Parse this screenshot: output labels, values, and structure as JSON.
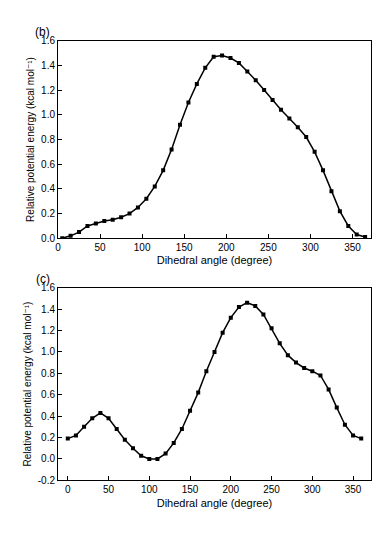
{
  "chart_data": [
    {
      "type": "line",
      "title": "(b)",
      "x_label": "Dihedral angle (degree)",
      "y_label": "Relative potential energy (kcal mol⁻¹)",
      "x": [
        5,
        15,
        25,
        35,
        45,
        55,
        65,
        75,
        85,
        95,
        105,
        115,
        125,
        135,
        145,
        155,
        165,
        175,
        185,
        195,
        205,
        215,
        225,
        235,
        245,
        255,
        265,
        275,
        285,
        295,
        305,
        315,
        325,
        335,
        345,
        355,
        365
      ],
      "values": [
        0.0,
        0.02,
        0.05,
        0.1,
        0.12,
        0.14,
        0.15,
        0.17,
        0.2,
        0.25,
        0.32,
        0.42,
        0.55,
        0.72,
        0.92,
        1.1,
        1.25,
        1.38,
        1.47,
        1.48,
        1.46,
        1.42,
        1.35,
        1.28,
        1.2,
        1.12,
        1.04,
        0.97,
        0.9,
        0.82,
        0.7,
        0.55,
        0.38,
        0.22,
        0.1,
        0.03,
        0.01
      ],
      "color": "#000000",
      "marker": "square",
      "line_style": "solid",
      "xlim": [
        0,
        372
      ],
      "xticks": [
        0,
        50,
        100,
        150,
        200,
        250,
        300,
        350
      ],
      "ylim": [
        0,
        1.6
      ],
      "yticks": [
        {
          "value": 0,
          "label": "0.0"
        },
        {
          "value": 0.2,
          "label": "0.2"
        },
        {
          "value": 0.4,
          "label": "0.4"
        },
        {
          "value": 0.6,
          "label": "0.6"
        },
        {
          "value": 0.8,
          "label": "0.8"
        },
        {
          "value": 1.0,
          "label": "1.0"
        },
        {
          "value": 1.2,
          "label": "1.2"
        },
        {
          "value": 1.4,
          "label": "1.4"
        },
        {
          "value": 1.6,
          "label": "1.6"
        }
      ],
      "grid": false
    },
    {
      "type": "line",
      "title": "(c)",
      "x_label": "Dihedral angle (degree)",
      "y_label": "Relative potential energy (kcal mol⁻¹)",
      "x": [
        0,
        10,
        20,
        30,
        40,
        50,
        60,
        70,
        80,
        90,
        100,
        110,
        120,
        130,
        140,
        150,
        160,
        170,
        180,
        190,
        200,
        210,
        220,
        230,
        240,
        250,
        260,
        270,
        280,
        290,
        300,
        310,
        320,
        330,
        340,
        350,
        360
      ],
      "values": [
        0.19,
        0.22,
        0.3,
        0.38,
        0.43,
        0.38,
        0.28,
        0.18,
        0.1,
        0.03,
        0.0,
        0.0,
        0.05,
        0.15,
        0.28,
        0.45,
        0.62,
        0.82,
        1.0,
        1.18,
        1.32,
        1.42,
        1.46,
        1.43,
        1.35,
        1.22,
        1.08,
        0.97,
        0.9,
        0.85,
        0.82,
        0.78,
        0.65,
        0.48,
        0.32,
        0.22,
        0.19
      ],
      "color": "#000000",
      "marker": "square",
      "line_style": "solid",
      "xlim": [
        -12,
        372
      ],
      "xticks": [
        0,
        50,
        100,
        150,
        200,
        250,
        300,
        350
      ],
      "ylim": [
        -0.2,
        1.6
      ],
      "yticks": [
        {
          "value": -0.2,
          "label": "-0.2"
        },
        {
          "value": 0,
          "label": "0.0"
        },
        {
          "value": 0.2,
          "label": "0.2"
        },
        {
          "value": 0.4,
          "label": "0.4"
        },
        {
          "value": 0.6,
          "label": "0.6"
        },
        {
          "value": 0.8,
          "label": "0.8"
        },
        {
          "value": 1.0,
          "label": "1.0"
        },
        {
          "value": 1.2,
          "label": "1.2"
        },
        {
          "value": 1.4,
          "label": "1.4"
        },
        {
          "value": 1.6,
          "label": "1.6"
        }
      ],
      "grid": false
    }
  ]
}
